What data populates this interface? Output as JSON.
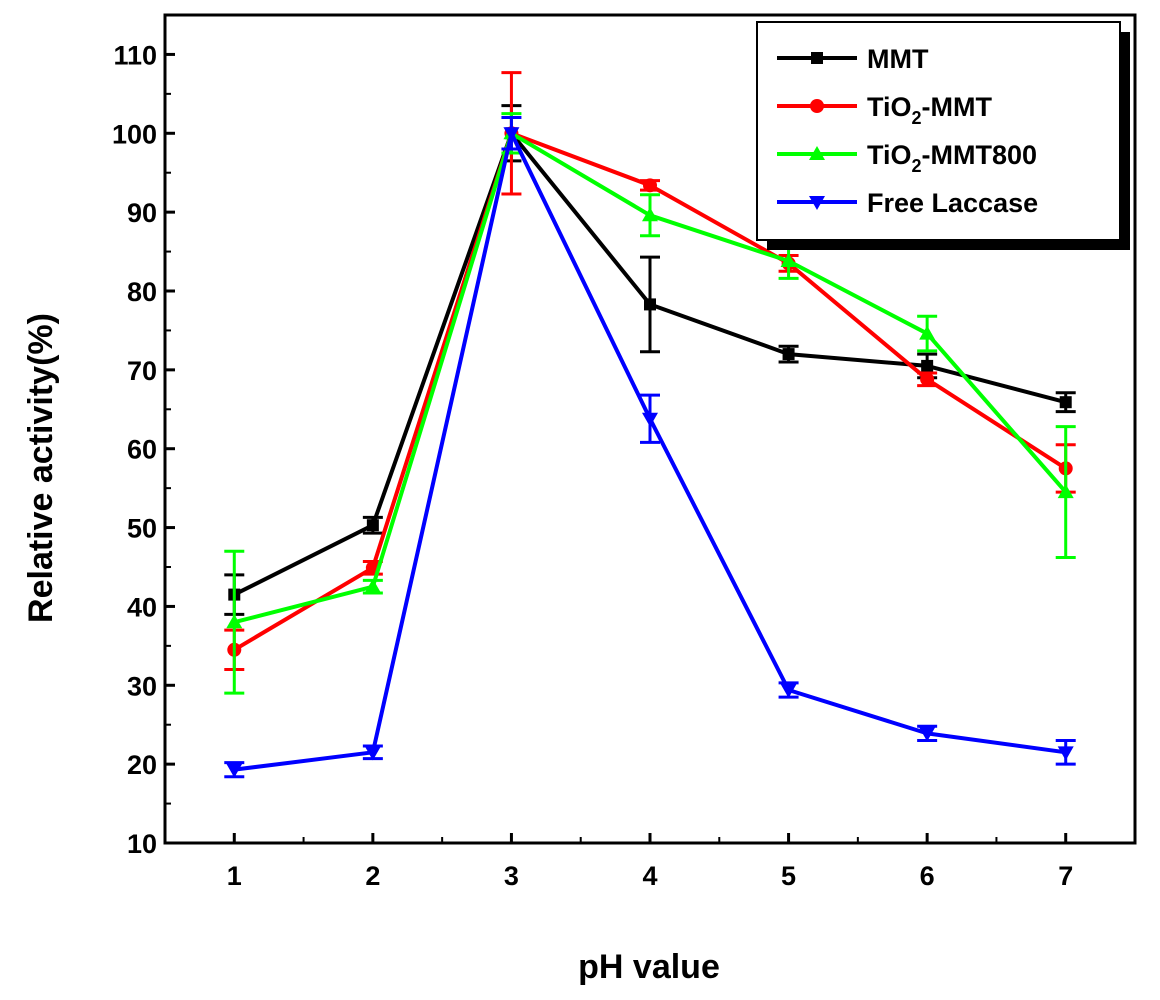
{
  "chart_data": {
    "type": "line",
    "title": "",
    "xlabel": "pH value",
    "ylabel": "Relative activity(%)",
    "x": [
      1,
      2,
      3,
      4,
      5,
      6,
      7
    ],
    "xlim": [
      0.5,
      7.5
    ],
    "ylim": [
      10,
      115
    ],
    "xticks": [
      "1",
      "2",
      "3",
      "4",
      "5",
      "6",
      "7"
    ],
    "yticks": [
      "10",
      "20",
      "30",
      "40",
      "50",
      "60",
      "70",
      "80",
      "90",
      "100",
      "110"
    ],
    "legend_position": "top-right",
    "series": [
      {
        "name": "MMT",
        "name_parts": [
          "MMT"
        ],
        "color": "#000000",
        "marker": "square",
        "values": [
          41.5,
          50.3,
          100.0,
          78.3,
          72.0,
          70.5,
          65.9
        ],
        "errors": [
          2.5,
          1.0,
          3.5,
          6.0,
          1.0,
          1.5,
          1.2
        ]
      },
      {
        "name": "TiO2-MMT",
        "name_parts": [
          "TiO",
          "2",
          "-MMT"
        ],
        "color": "#ff0000",
        "marker": "circle",
        "values": [
          34.5,
          44.9,
          100.0,
          93.4,
          83.5,
          68.8,
          57.5
        ],
        "errors": [
          2.5,
          0.8,
          7.7,
          0.6,
          1.0,
          0.8,
          3.0
        ]
      },
      {
        "name": "TiO2-MMT800",
        "name_parts": [
          "TiO",
          "2",
          "-MMT800"
        ],
        "color": "#00ff00",
        "marker": "triangle-up",
        "values": [
          38.0,
          42.5,
          100.0,
          89.6,
          83.8,
          74.6,
          54.5
        ],
        "errors": [
          9.0,
          0.8,
          2.5,
          2.6,
          2.2,
          2.2,
          8.3
        ]
      },
      {
        "name": "Free Laccase",
        "name_parts": [
          "Free Laccase"
        ],
        "color": "#0000ff",
        "marker": "triangle-down",
        "values": [
          19.3,
          21.5,
          100.0,
          63.8,
          29.4,
          23.9,
          21.5
        ],
        "errors": [
          0.9,
          0.8,
          2.0,
          3.0,
          0.9,
          0.9,
          1.5
        ]
      }
    ]
  }
}
